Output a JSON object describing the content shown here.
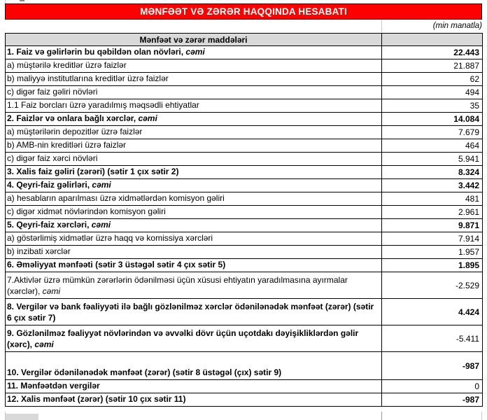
{
  "page": {
    "title": "MƏNFƏƏT VƏ ZƏRƏR HAQQINDA HESABATI",
    "unit_note": "(min manatla)",
    "accent_red": "#ff0000",
    "header_gray": "#d9d9d9"
  },
  "table": {
    "header": "Mənfəət və zərər maddələri",
    "rows": [
      {
        "label": "1. Faiz və gəlirlərin bu qəbildən olan növləri, ",
        "label_italic": "cəmi",
        "value": "22.443",
        "label_bold": true,
        "value_bold": true,
        "h": 19
      },
      {
        "label": "a) müştərilə kreditlər üzrə faizlər",
        "label_italic": "",
        "value": "21.887",
        "label_bold": false,
        "value_bold": false,
        "h": 19
      },
      {
        "label": "b) maliyyə institutlarına kreditlər üzrə faizlər",
        "label_italic": "",
        "value": "62",
        "label_bold": false,
        "value_bold": false,
        "h": 19
      },
      {
        "label": "c) digər faiz gəliri növləri",
        "label_italic": "",
        "value": "494",
        "label_bold": false,
        "value_bold": false,
        "h": 19
      },
      {
        "label": "1.1 Faiz borcları üzrə yaradılmış məqsədli ehtiyatlar",
        "label_italic": "",
        "value": "35",
        "label_bold": false,
        "value_bold": false,
        "h": 19
      },
      {
        "label": "2. Faizlər və onlara bağlı xərclər, ",
        "label_italic": "cəmi",
        "value": "14.084",
        "label_bold": true,
        "value_bold": true,
        "h": 19
      },
      {
        "label": "a) müştərilərin depozitlər üzrə faizlər",
        "label_italic": "",
        "value": "7.679",
        "label_bold": false,
        "value_bold": false,
        "h": 19
      },
      {
        "label": "b) AMB-nin kreditləri üzrə faizlər",
        "label_italic": "",
        "value": "464",
        "label_bold": false,
        "value_bold": false,
        "h": 19
      },
      {
        "label": "c) digər faiz xərci növləri",
        "label_italic": "",
        "value": "5.941",
        "label_bold": false,
        "value_bold": false,
        "h": 19
      },
      {
        "label": "3. Xalis faiz gəliri (zərəri) (sətir 1 çıx sətir 2)",
        "label_italic": "",
        "value": "8.324",
        "label_bold": true,
        "value_bold": true,
        "h": 19
      },
      {
        "label": "4. Qeyri-faiz gəlirləri, ",
        "label_italic": "cəmi",
        "value": "3.442",
        "label_bold": true,
        "value_bold": true,
        "h": 19
      },
      {
        "label": "a) hesabların aparılması üzrə xidmətlərdən komisyon gəliri",
        "label_italic": "",
        "value": "481",
        "label_bold": false,
        "value_bold": false,
        "h": 19
      },
      {
        "label": "c) digər xidmət növlərindən komisyon gəliri",
        "label_italic": "",
        "value": "2.961",
        "label_bold": false,
        "value_bold": false,
        "h": 19
      },
      {
        "label": "5. Qeyri-faiz xərcləri, ",
        "label_italic": "cəmi",
        "value": "9.871",
        "label_bold": true,
        "value_bold": true,
        "h": 19
      },
      {
        "label": "a) göstərlimiş xidmətlər üzrə haqq və komissiya xərcləri",
        "label_italic": "",
        "value": "7.914",
        "label_bold": false,
        "value_bold": false,
        "h": 19
      },
      {
        "label": "b) inzibati xərclər",
        "label_italic": "",
        "value": "1.957",
        "label_bold": false,
        "value_bold": false,
        "h": 19
      },
      {
        "label": "6. Əməliyyat mənfəəti (sətir 3 üstəgəl sətir 4 çıx sətir 5)",
        "label_italic": "",
        "value": "1.895",
        "label_bold": true,
        "value_bold": true,
        "h": 19
      },
      {
        "label": "7.Aktivlər üzrə mümkün zərərlərin ödənilməsi üçün xüsusi ehtiyatın yaradılmasına ayırmalar (xərclər), ",
        "label_italic": "cəmi",
        "value": "-2.529",
        "label_bold": false,
        "value_bold": false,
        "h": 38
      },
      {
        "label": "8. Vergilər və bank fəaliyyəti ilə bağlı gözlənilməz xərclər ödənilənədək mənfəət (zərər) (sətir 6 çıx sətir 7)",
        "label_italic": "",
        "value": "4.424",
        "label_bold": true,
        "value_bold": true,
        "h": 38
      },
      {
        "label": "9. Gözlənilməz fəaliyyət növlərindən və əvvəlki dövr üçün uçotdakı dəyişikliklərdən gəlir (xərc), ",
        "label_italic": "cəmi",
        "value": "-5.411",
        "label_bold": true,
        "value_bold": false,
        "h": 38
      },
      {
        "label": "10. Vergilər ödənilənədək mənfəət (zərər) (sətir 8 üstəgəl (çıx) sətir 9)",
        "label_italic": "",
        "value": "-987",
        "label_bold": true,
        "value_bold": true,
        "h": 40
      },
      {
        "label": "11. Mənfəətdən vergilər",
        "label_italic": "",
        "value": "0",
        "label_bold": true,
        "value_bold": false,
        "h": 19
      },
      {
        "label": "12. Xalis mənfəət (zərər) (sətir 10 çıx sətir 11)",
        "label_italic": "",
        "value": "-987",
        "label_bold": true,
        "value_bold": true,
        "h": 19
      }
    ]
  }
}
